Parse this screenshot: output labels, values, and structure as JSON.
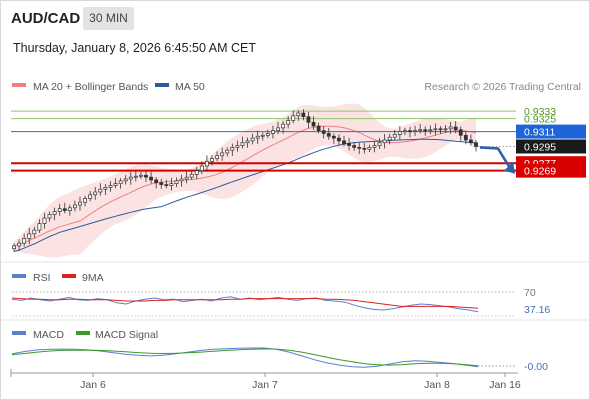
{
  "header": {
    "symbol": "AUD/CAD",
    "timeframe": "30 MIN",
    "datetime": "Thursday, January 8, 2026 6:45:50 AM CET"
  },
  "legend_main": [
    {
      "label": "MA 20 + Bollinger Bands",
      "color": "#f08080"
    },
    {
      "label": "MA 50",
      "color": "#2d5a9a"
    }
  ],
  "credit": "Research © 2026 Trading Central",
  "legend_rsi": [
    {
      "label": "RSI",
      "color": "#5a7fd0"
    },
    {
      "label": "9MA",
      "color": "#e02020"
    }
  ],
  "legend_macd": [
    {
      "label": "MACD",
      "color": "#5a7fd0"
    },
    {
      "label": "MACD Signal",
      "color": "#3a9a2a"
    }
  ],
  "colors": {
    "candle": "#333333",
    "bollinger_fill": "#fadede",
    "ma20": "#f08080",
    "ma50": "#2d5a9a",
    "target_line": "#8fc46a",
    "pivot_line": "#2d6bd6",
    "support_line": "#d40000",
    "arrow": "#2a62b0"
  },
  "chart_data": [
    {
      "type": "candlestick",
      "title": "AUD/CAD",
      "x_ticks": [
        "Jan 6",
        "Jan 7",
        "Jan 8",
        "Jan 16"
      ],
      "ylim": [
        0.9175,
        0.9345
      ],
      "close": [
        0.9188,
        0.9191,
        0.9196,
        0.9201,
        0.9205,
        0.9212,
        0.9218,
        0.9222,
        0.9225,
        0.9228,
        0.9226,
        0.9229,
        0.9232,
        0.9235,
        0.9239,
        0.9243,
        0.9246,
        0.9249,
        0.9251,
        0.9253,
        0.9255,
        0.9258,
        0.926,
        0.9262,
        0.9263,
        0.9264,
        0.9262,
        0.9259,
        0.9256,
        0.9254,
        0.9253,
        0.9255,
        0.9258,
        0.926,
        0.9262,
        0.9265,
        0.9269,
        0.9274,
        0.9279,
        0.9282,
        0.9285,
        0.9288,
        0.9291,
        0.9294,
        0.9296,
        0.9299,
        0.9301,
        0.9304,
        0.9306,
        0.9307,
        0.9309,
        0.9312,
        0.9315,
        0.9319,
        0.9323,
        0.9328,
        0.9331,
        0.9327,
        0.9321,
        0.9317,
        0.9312,
        0.9309,
        0.9306,
        0.9304,
        0.9301,
        0.9298,
        0.9296,
        0.9294,
        0.9293,
        0.9292,
        0.9294,
        0.9296,
        0.9299,
        0.9302,
        0.9305,
        0.9308,
        0.9311,
        0.9312,
        0.9311,
        0.9312,
        0.9313,
        0.9312,
        0.9313,
        0.9314,
        0.9313,
        0.9314,
        0.9316,
        0.9313,
        0.9307,
        0.9302,
        0.9299,
        0.9295
      ],
      "levels": [
        {
          "label": "0.9333",
          "value": 0.9333,
          "kind": "target"
        },
        {
          "label": "0.9325",
          "value": 0.9325,
          "kind": "target"
        },
        {
          "label": "0.9311",
          "value": 0.9311,
          "kind": "pivot"
        },
        {
          "label": "0.9295",
          "value": 0.9295,
          "kind": "last"
        },
        {
          "label": "0.9277",
          "value": 0.9277,
          "kind": "support"
        },
        {
          "label": "0.9269",
          "value": 0.9269,
          "kind": "support"
        }
      ]
    },
    {
      "type": "line",
      "title": "RSI",
      "ylim": [
        0,
        100
      ],
      "level_label": "70",
      "level": 70,
      "last_label": "37.16",
      "series": [
        {
          "name": "RSI",
          "values": [
            58,
            56,
            60,
            57,
            55,
            58,
            61,
            57,
            56,
            59,
            57,
            52,
            50,
            55,
            58,
            60,
            57,
            58,
            54,
            56,
            58,
            55,
            60,
            62,
            58,
            60,
            57,
            59,
            61,
            58,
            56,
            59,
            60,
            56,
            55,
            53,
            48,
            44,
            41,
            40,
            42,
            45,
            48,
            50,
            49,
            47,
            45,
            42,
            40,
            37
          ]
        },
        {
          "name": "9MA",
          "values": [
            60,
            59,
            58,
            58,
            57,
            57,
            58,
            58,
            57,
            57,
            57,
            56,
            55,
            55,
            55,
            56,
            56,
            57,
            57,
            57,
            57,
            57,
            57,
            58,
            58,
            59,
            59,
            59,
            59,
            59,
            59,
            59,
            59,
            58,
            58,
            57,
            56,
            54,
            52,
            50,
            48,
            46,
            46,
            46,
            46,
            46,
            46,
            45,
            44,
            43
          ]
        }
      ]
    },
    {
      "type": "line",
      "title": "MACD",
      "last_label": "-0.00",
      "ylim": [
        -1.3,
        1.0
      ],
      "series": [
        {
          "name": "MACD",
          "values": [
            0.2,
            0.4,
            0.55,
            0.6,
            0.62,
            0.6,
            0.55,
            0.45,
            0.3,
            0.15,
            0.05,
            0.0,
            0.05,
            0.2,
            0.35,
            0.5,
            0.6,
            0.65,
            0.7,
            0.72,
            0.72,
            0.6,
            0.35,
            0.0,
            -0.35,
            -0.65,
            -0.85,
            -1.0,
            -1.05,
            -0.95,
            -0.75,
            -0.55,
            -0.45,
            -0.5,
            -0.6,
            -0.7,
            -0.85,
            -1.0
          ]
        },
        {
          "name": "MACD Signal",
          "values": [
            0.1,
            0.22,
            0.35,
            0.45,
            0.5,
            0.52,
            0.52,
            0.5,
            0.45,
            0.38,
            0.3,
            0.25,
            0.22,
            0.24,
            0.28,
            0.35,
            0.42,
            0.5,
            0.56,
            0.6,
            0.64,
            0.62,
            0.52,
            0.35,
            0.12,
            -0.12,
            -0.35,
            -0.55,
            -0.72,
            -0.82,
            -0.85,
            -0.8,
            -0.72,
            -0.68,
            -0.68,
            -0.72,
            -0.8,
            -0.9
          ]
        }
      ]
    }
  ]
}
